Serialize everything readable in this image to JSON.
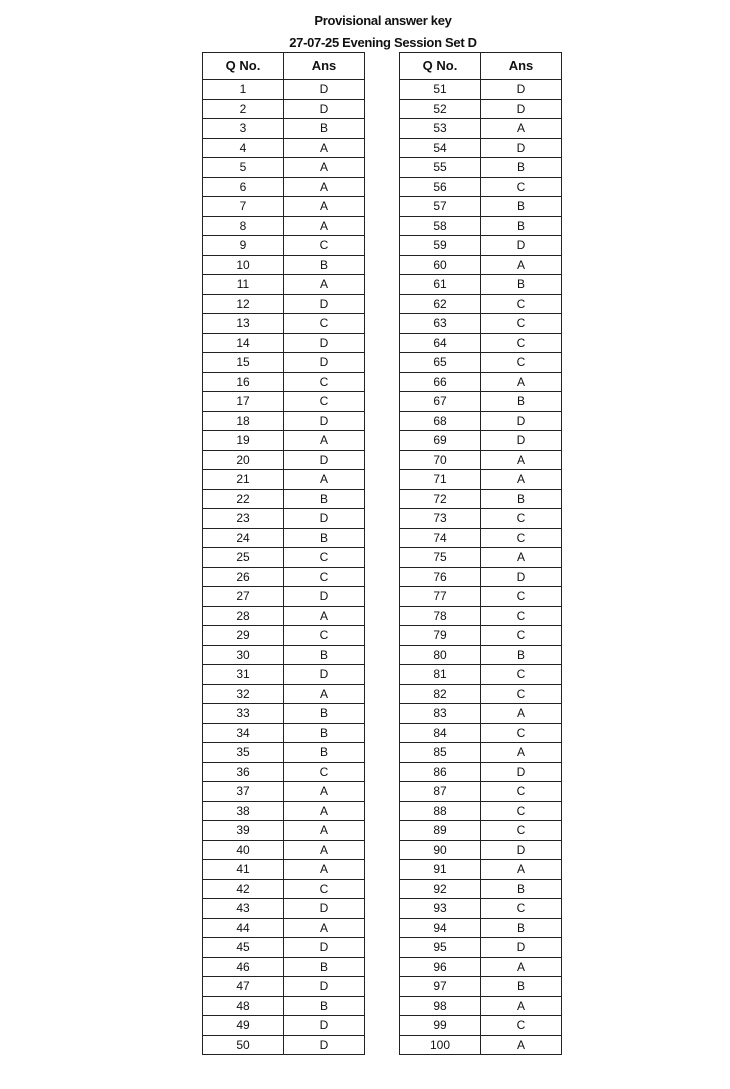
{
  "document": {
    "title": "Provisional answer key",
    "subtitle": "27-07-25 Evening Session Set D",
    "headers": {
      "qno": "Q No.",
      "ans": "Ans"
    },
    "left_table": {
      "start": 1,
      "answers": [
        "D",
        "D",
        "B",
        "A",
        "A",
        "A",
        "A",
        "A",
        "C",
        "B",
        "A",
        "D",
        "C",
        "D",
        "D",
        "C",
        "C",
        "D",
        "A",
        "D",
        "A",
        "B",
        "D",
        "B",
        "C",
        "C",
        "D",
        "A",
        "C",
        "B",
        "D",
        "A",
        "B",
        "B",
        "B",
        "C",
        "A",
        "A",
        "A",
        "A",
        "A",
        "C",
        "D",
        "A",
        "D",
        "B",
        "D",
        "B",
        "D",
        "D"
      ]
    },
    "right_table": {
      "start": 51,
      "answers": [
        "D",
        "D",
        "A",
        "D",
        "B",
        "C",
        "B",
        "B",
        "D",
        "A",
        "B",
        "C",
        "C",
        "C",
        "C",
        "A",
        "B",
        "D",
        "D",
        "A",
        "A",
        "B",
        "C",
        "C",
        "A",
        "D",
        "C",
        "C",
        "C",
        "B",
        "C",
        "C",
        "A",
        "C",
        "A",
        "D",
        "C",
        "C",
        "C",
        "D",
        "A",
        "B",
        "C",
        "B",
        "D",
        "A",
        "B",
        "A",
        "C",
        "A"
      ]
    }
  }
}
